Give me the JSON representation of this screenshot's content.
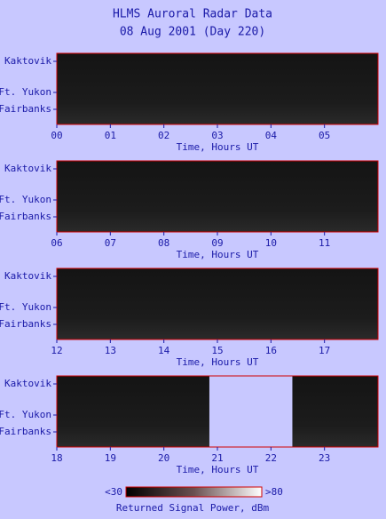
{
  "title": "HLMS Auroral Radar Data",
  "subtitle": "08 Aug 2001 (Day 220)",
  "chart_data": [
    {
      "type": "heatmap",
      "xlabel": "Time, Hours UT",
      "ycategories": [
        "Kaktovik",
        "Ft. Yukon",
        "Fairbanks"
      ],
      "xlim": [
        0,
        6
      ],
      "xticks": [
        {
          "value": 0,
          "label": "00"
        },
        {
          "value": 1,
          "label": "01"
        },
        {
          "value": 2,
          "label": "02"
        },
        {
          "value": 3,
          "label": "03"
        },
        {
          "value": 4,
          "label": "04"
        },
        {
          "value": 5,
          "label": "05"
        }
      ]
    },
    {
      "type": "heatmap",
      "xlabel": "Time, Hours UT",
      "ycategories": [
        "Kaktovik",
        "Ft. Yukon",
        "Fairbanks"
      ],
      "xlim": [
        6,
        12
      ],
      "xticks": [
        {
          "value": 6,
          "label": "06"
        },
        {
          "value": 7,
          "label": "07"
        },
        {
          "value": 8,
          "label": "08"
        },
        {
          "value": 9,
          "label": "09"
        },
        10,
        11
      ]
    },
    {
      "type": "heatmap",
      "xlabel": "Time, Hours UT",
      "ycategories": [
        "Kaktovik",
        "Ft. Yukon",
        "Fairbanks"
      ],
      "xlim": [
        12,
        18
      ],
      "xticks": [
        12,
        13,
        14,
        15,
        16,
        17
      ]
    },
    {
      "type": "heatmap",
      "xlabel": "Time, Hours UT",
      "ycategories": [
        "Kaktovik",
        "Ft. Yukon",
        "Fairbanks"
      ],
      "xlim": [
        18,
        24
      ],
      "xticks": [
        18,
        19,
        20,
        21,
        22,
        23
      ],
      "no_data": [
        20.85,
        22.4
      ]
    }
  ],
  "colorbar": {
    "label": "Returned Signal Power, dBm",
    "lim": [
      30,
      80
    ],
    "ticks": [
      {
        "value": 30,
        "label": "<30"
      },
      {
        "value": 80,
        "label": ">80"
      }
    ]
  }
}
